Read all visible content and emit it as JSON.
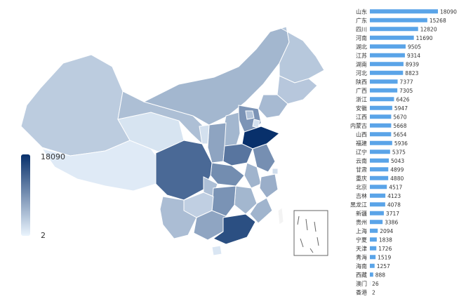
{
  "chart_data": {
    "type": "bar",
    "orientation": "horizontal",
    "title": "",
    "xlabel": "",
    "ylabel": "",
    "xlim": [
      0,
      18090
    ],
    "legend_placement": "left",
    "colors": {
      "bar": "#5aa4e8",
      "scale_low": "#eaf4fd",
      "scale_high": "#08306b",
      "map_border": "#ffffff",
      "inset_border": "#666666"
    },
    "visual_map": {
      "min": 2,
      "max": 18090,
      "min_label": "2",
      "max_label": "18090"
    },
    "categories": [
      "山东",
      "广东",
      "四川",
      "河南",
      "湖北",
      "江苏",
      "湖南",
      "河北",
      "陕西",
      "广西",
      "浙江",
      "安徽",
      "江西",
      "内蒙古",
      "山西",
      "福建",
      "辽宁",
      "云南",
      "甘肃",
      "重庆",
      "北京",
      "吉林",
      "黑龙江",
      "新疆",
      "贵州",
      "上海",
      "宁夏",
      "天津",
      "青海",
      "海南",
      "西藏",
      "澳门",
      "香港"
    ],
    "values": [
      18090,
      15268,
      12820,
      11690,
      9505,
      9314,
      8939,
      8823,
      7377,
      7305,
      6426,
      5947,
      5670,
      5668,
      5654,
      5936,
      5375,
      5043,
      4899,
      4880,
      4517,
      4123,
      4078,
      3717,
      3386,
      2094,
      1838,
      1726,
      1519,
      1257,
      888,
      26,
      2
    ],
    "map_regions": [
      {
        "name": "新疆",
        "value": 3717
      },
      {
        "name": "西藏",
        "value": 888
      },
      {
        "name": "青海",
        "value": 1519
      },
      {
        "name": "甘肃",
        "value": 4899
      },
      {
        "name": "内蒙古",
        "value": 5668
      },
      {
        "name": "黑龙江",
        "value": 4078
      },
      {
        "name": "吉林",
        "value": 4123
      },
      {
        "name": "辽宁",
        "value": 5375
      },
      {
        "name": "河北",
        "value": 8823
      },
      {
        "name": "北京",
        "value": 4517
      },
      {
        "name": "天津",
        "value": 1726
      },
      {
        "name": "山西",
        "value": 5654
      },
      {
        "name": "陕西",
        "value": 7377
      },
      {
        "name": "宁夏",
        "value": 1838
      },
      {
        "name": "山东",
        "value": 18090
      },
      {
        "name": "河南",
        "value": 11690
      },
      {
        "name": "江苏",
        "value": 9314
      },
      {
        "name": "上海",
        "value": 2094
      },
      {
        "name": "安徽",
        "value": 5947
      },
      {
        "name": "湖北",
        "value": 9505
      },
      {
        "name": "四川",
        "value": 12820
      },
      {
        "name": "重庆",
        "value": 4880
      },
      {
        "name": "浙江",
        "value": 6426
      },
      {
        "name": "江西",
        "value": 5670
      },
      {
        "name": "湖南",
        "value": 8939
      },
      {
        "name": "贵州",
        "value": 3386
      },
      {
        "name": "云南",
        "value": 5043
      },
      {
        "name": "广西",
        "value": 7305
      },
      {
        "name": "广东",
        "value": 15268
      },
      {
        "name": "福建",
        "value": 5936
      },
      {
        "name": "海南",
        "value": 1257
      },
      {
        "name": "台湾",
        "value": 0
      }
    ]
  }
}
